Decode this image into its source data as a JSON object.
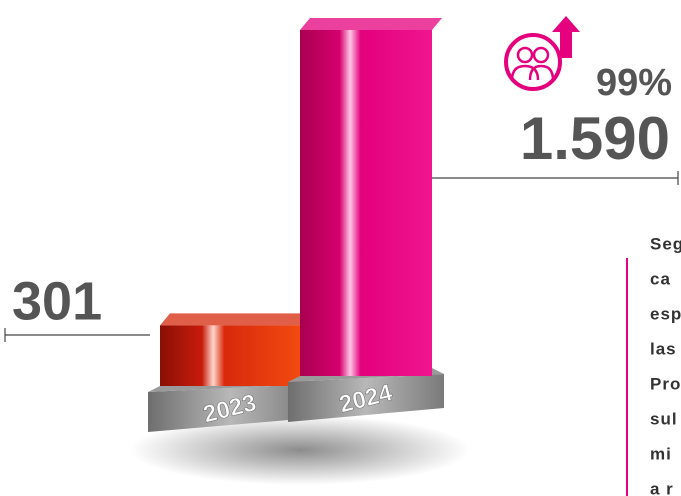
{
  "chart_data": {
    "type": "bar3d",
    "categories": [
      "2023",
      "2024"
    ],
    "values": [
      301,
      1590
    ],
    "value_labels": [
      "301",
      "1.590"
    ],
    "colors": [
      "#d42a0c",
      "#e5007e"
    ],
    "annotation": "99%",
    "side_text": [
      "Seg",
      "ca",
      "esp",
      "las",
      "Pro",
      "sul",
      "mi",
      "a r"
    ]
  }
}
